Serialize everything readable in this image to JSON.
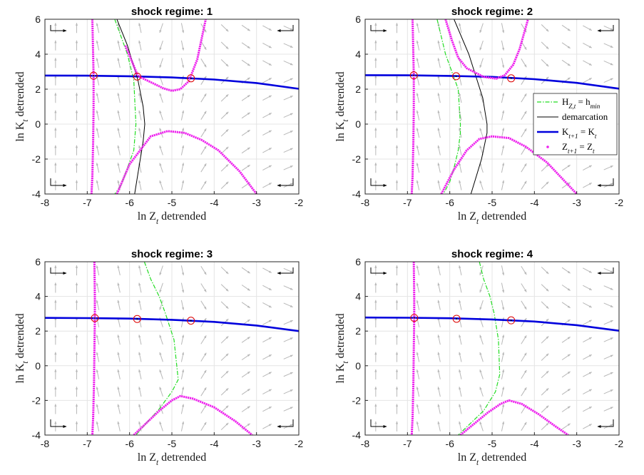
{
  "colors": {
    "h_curve": "#22dd22",
    "demarcation": "#000000",
    "k_nullcline": "#0000dd",
    "z_nullcline": "#ee22ee",
    "steady_state_marker": "#dd0000",
    "arrows": "#b8b8b8",
    "grid": "#e4e4e4"
  },
  "legend": {
    "placement": "right (panel 2)",
    "items": [
      {
        "key": "h",
        "label": "H_{Z,t} = h_min"
      },
      {
        "key": "demarcation",
        "label": "demarcation"
      },
      {
        "key": "k_nullcline",
        "label": "K_{t+1} = K_t"
      },
      {
        "key": "z_nullcline",
        "label": "Z_{t+1} = Z_t"
      }
    ]
  },
  "chart_data": [
    {
      "type": "line",
      "title": "shock regime: 1",
      "xlabel": "ln Z_t detrended",
      "ylabel": "ln K_t detrended",
      "xlim": [
        -8,
        -2
      ],
      "ylim": [
        -4,
        6
      ],
      "xticks": [
        "-8",
        "-7",
        "-6",
        "-5",
        "-4",
        "-3",
        "-2"
      ],
      "yticks": [
        "-4",
        "-2",
        "0",
        "2",
        "4",
        "6"
      ],
      "grid": true,
      "k_nullcline": {
        "x": [
          -8,
          -7,
          -6,
          -5,
          -4,
          -3,
          -2
        ],
        "y": [
          2.78,
          2.77,
          2.74,
          2.67,
          2.55,
          2.35,
          2.02
        ]
      },
      "z_nullcline": [
        {
          "x": [
            -6.88,
            -6.86,
            -6.85,
            -6.85,
            -6.86,
            -6.88,
            -6.9
          ],
          "y": [
            6,
            4,
            2.8,
            1,
            -1,
            -3,
            -4
          ]
        },
        {
          "x": [
            -6.1,
            -5.8,
            -5.5,
            -5.2,
            -5.0,
            -4.8,
            -4.6,
            -4.4,
            -4.2
          ],
          "y": [
            4.5,
            2.75,
            2.4,
            2.05,
            1.9,
            2.0,
            2.45,
            3.7,
            6
          ]
        },
        {
          "x": [
            -6.3,
            -6.0,
            -5.5,
            -5.1,
            -4.7,
            -4.3,
            -3.9,
            -3.4,
            -3.0
          ],
          "y": [
            -4,
            -2.3,
            -0.7,
            -0.4,
            -0.5,
            -0.9,
            -1.5,
            -2.7,
            -4
          ]
        }
      ],
      "h_curve": {
        "x": [
          -6.35,
          -6.2,
          -6.05,
          -5.9,
          -5.85,
          -5.9,
          -6.05,
          -6.2,
          -6.35
        ],
        "y": [
          6,
          5,
          4,
          2.5,
          0,
          -1.5,
          -2.5,
          -3.5,
          -4
        ]
      },
      "demarcation": {
        "x": [
          -6.3,
          -6.05,
          -5.8,
          -5.68,
          -5.64,
          -5.68,
          -5.78,
          -5.88
        ],
        "y": [
          6,
          4.5,
          2.5,
          1,
          0,
          -1,
          -2.5,
          -4
        ]
      },
      "steady_states": {
        "x": [
          -6.85,
          -5.82,
          -4.55
        ],
        "y": [
          2.77,
          2.72,
          2.62
        ]
      }
    },
    {
      "type": "line",
      "title": "shock regime: 2",
      "xlabel": "ln Z_t detrended",
      "ylabel": "ln K_t detrended",
      "xlim": [
        -8,
        -2
      ],
      "ylim": [
        -4,
        6
      ],
      "xticks": [
        "-8",
        "-7",
        "-6",
        "-5",
        "-4",
        "-3",
        "-2"
      ],
      "yticks": [
        "-4",
        "-2",
        "0",
        "2",
        "4",
        "6"
      ],
      "grid": true,
      "k_nullcline": {
        "x": [
          -8,
          -7,
          -6,
          -5,
          -4,
          -3,
          -2
        ],
        "y": [
          2.8,
          2.79,
          2.76,
          2.7,
          2.57,
          2.36,
          2.03
        ]
      },
      "z_nullcline": [
        {
          "x": [
            -6.88,
            -6.86,
            -6.85,
            -6.85,
            -6.86,
            -6.88,
            -6.9
          ],
          "y": [
            6,
            4,
            2.8,
            1,
            -1,
            -3,
            -4
          ]
        },
        {
          "x": [
            -6.1,
            -5.95,
            -5.8,
            -5.6,
            -5.2,
            -4.9,
            -4.7,
            -4.5,
            -4.35,
            -4.15
          ],
          "y": [
            6,
            4.8,
            3.8,
            3.2,
            2.7,
            2.6,
            2.8,
            3.4,
            4.3,
            6
          ]
        },
        {
          "x": [
            -6.2,
            -5.9,
            -5.6,
            -5.3,
            -5.0,
            -4.6,
            -4.2,
            -3.7,
            -3.0
          ],
          "y": [
            -4,
            -2.6,
            -1.5,
            -0.85,
            -0.7,
            -0.8,
            -1.3,
            -2.2,
            -4
          ]
        }
      ],
      "h_curve": {
        "x": [
          -6.3,
          -6.2,
          -6.1,
          -5.95,
          -5.8,
          -5.75,
          -5.75,
          -5.8,
          -5.9,
          -6.0,
          -6.15
        ],
        "y": [
          6,
          5,
          4,
          3,
          2,
          0,
          -0.5,
          -1.5,
          -2.5,
          -3.3,
          -4
        ]
      },
      "demarcation": {
        "x": [
          -5.9,
          -5.55,
          -5.22,
          -5.12,
          -5.12,
          -5.25,
          -5.4,
          -5.5
        ],
        "y": [
          6,
          4,
          1.5,
          0,
          -0.5,
          -2,
          -3.2,
          -4
        ]
      },
      "steady_states": {
        "x": [
          -6.85,
          -5.85,
          -4.55
        ],
        "y": [
          2.79,
          2.74,
          2.62
        ]
      }
    },
    {
      "type": "line",
      "title": "shock regime: 3",
      "xlabel": "ln Z_t detrended",
      "ylabel": "ln K_t detrended",
      "xlim": [
        -8,
        -2
      ],
      "ylim": [
        -4,
        6
      ],
      "xticks": [
        "-8",
        "-7",
        "-6",
        "-5",
        "-4",
        "-3",
        "-2"
      ],
      "yticks": [
        "-4",
        "-2",
        "0",
        "2",
        "4",
        "6"
      ],
      "grid": true,
      "k_nullcline": {
        "x": [
          -8,
          -7,
          -6,
          -5,
          -4,
          -3,
          -2
        ],
        "y": [
          2.76,
          2.75,
          2.72,
          2.65,
          2.53,
          2.32,
          2.0
        ]
      },
      "z_nullcline": [
        {
          "x": [
            -6.83,
            -6.82,
            -6.82,
            -6.83,
            -6.84,
            -6.86,
            -6.88
          ],
          "y": [
            6,
            4,
            2.76,
            1,
            -1,
            -3,
            -4
          ]
        },
        {
          "x": [
            -5.9,
            -5.6,
            -5.3,
            -5.0,
            -4.8,
            -4.5,
            -4.0,
            -3.5,
            -3.1
          ],
          "y": [
            -4,
            -3.3,
            -2.6,
            -2.0,
            -1.75,
            -1.9,
            -2.4,
            -3.2,
            -4
          ]
        }
      ],
      "h_curve": {
        "x": [
          -5.65,
          -5.5,
          -5.3,
          -5.15,
          -4.95,
          -4.85,
          -5.0,
          -5.3,
          -5.6,
          -5.85
        ],
        "y": [
          6,
          5,
          4,
          3,
          1.5,
          -0.8,
          -1.5,
          -2.5,
          -3.3,
          -4
        ]
      },
      "steady_states": {
        "x": [
          -6.82,
          -5.82,
          -4.55
        ],
        "y": [
          2.75,
          2.7,
          2.6
        ]
      }
    },
    {
      "type": "line",
      "title": "shock regime: 4",
      "xlabel": "ln Z_t detrended",
      "ylabel": "ln K_t detrended",
      "xlim": [
        -8,
        -2
      ],
      "ylim": [
        -4,
        6
      ],
      "xticks": [
        "-8",
        "-7",
        "-6",
        "-5",
        "-4",
        "-3",
        "-2"
      ],
      "yticks": [
        "-4",
        "-2",
        "0",
        "2",
        "4",
        "6"
      ],
      "grid": true,
      "k_nullcline": {
        "x": [
          -8,
          -7,
          -6,
          -5,
          -4,
          -3,
          -2
        ],
        "y": [
          2.78,
          2.77,
          2.74,
          2.67,
          2.55,
          2.34,
          2.02
        ]
      },
      "z_nullcline": [
        {
          "x": [
            -6.85,
            -6.84,
            -6.84,
            -6.85,
            -6.86,
            -6.88,
            -6.9
          ],
          "y": [
            6,
            4,
            2.77,
            1,
            -1,
            -3,
            -4
          ]
        },
        {
          "x": [
            -5.75,
            -5.4,
            -5.1,
            -4.8,
            -4.6,
            -4.3,
            -3.9,
            -3.5,
            -3.2
          ],
          "y": [
            -4,
            -3.3,
            -2.7,
            -2.2,
            -2.0,
            -2.2,
            -2.8,
            -3.5,
            -4
          ]
        }
      ],
      "h_curve": {
        "x": [
          -5.3,
          -5.2,
          -5.05,
          -4.95,
          -4.85,
          -4.82,
          -4.92,
          -5.2,
          -5.5,
          -5.8
        ],
        "y": [
          6,
          5,
          4,
          3,
          1.5,
          -0.5,
          -1.5,
          -2.6,
          -3.3,
          -4
        ]
      },
      "steady_states": {
        "x": [
          -6.84,
          -5.84,
          -4.55
        ],
        "y": [
          2.76,
          2.71,
          2.62
        ]
      }
    }
  ]
}
